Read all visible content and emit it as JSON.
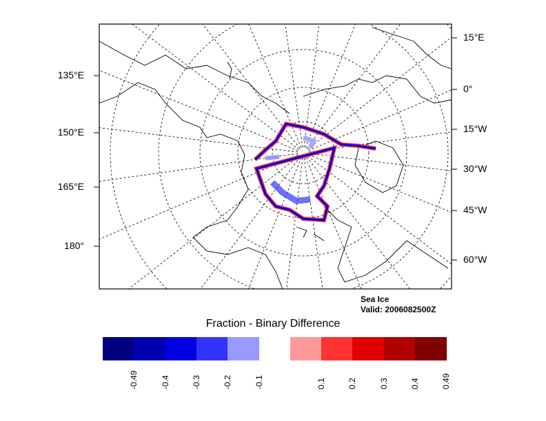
{
  "map": {
    "projection": "polar stereographic (north)",
    "left_lon_labels": [
      {
        "text": "135°E"
      },
      {
        "text": "150°E"
      },
      {
        "text": "165°E"
      },
      {
        "text": "180°"
      }
    ],
    "right_lon_labels": [
      {
        "text": "15°E"
      },
      {
        "text": "0°"
      },
      {
        "text": "15°W"
      },
      {
        "text": "30°W"
      },
      {
        "text": "45°W"
      },
      {
        "text": "60°W"
      }
    ]
  },
  "info": {
    "line1": "Sea Ice",
    "line2": "Valid: 2006082500Z"
  },
  "colorbar": {
    "title": "Fraction - Binary Difference",
    "colors": [
      "#000080",
      "#0000b0",
      "#0000e0",
      "#3333ff",
      "#9999ff",
      "#ffffff",
      "#ff9999",
      "#ff3333",
      "#e00000",
      "#b00000",
      "#800000"
    ],
    "labels": [
      "-0.49",
      "-0.4",
      "-0.3",
      "-0.2",
      "-0.1",
      "0.1",
      "0.2",
      "0.3",
      "0.4",
      "0.49"
    ]
  }
}
